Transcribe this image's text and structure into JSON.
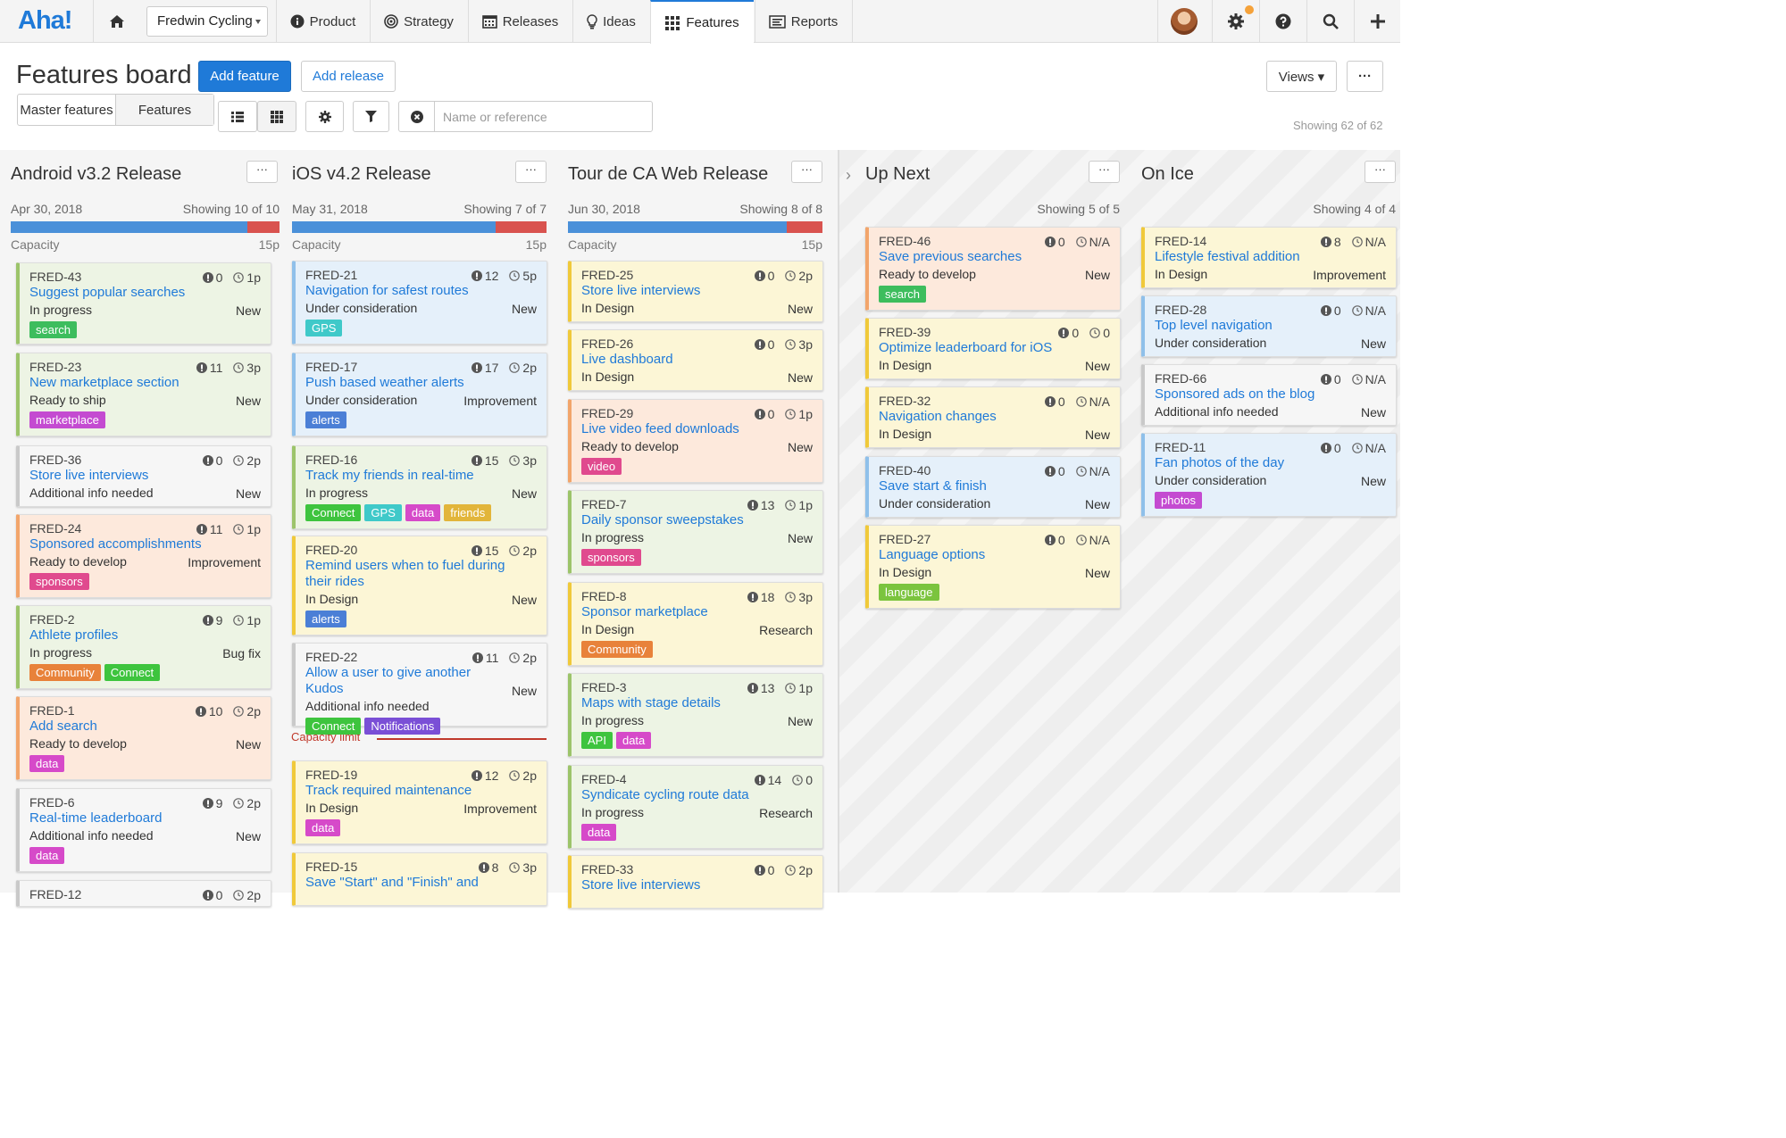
{
  "app": {
    "logo": "Aha!",
    "workspace": "Fredwin Cycling"
  },
  "nav": {
    "product": "Product",
    "strategy": "Strategy",
    "releases": "Releases",
    "ideas": "Ideas",
    "features": "Features",
    "reports": "Reports"
  },
  "page": {
    "title": "Features board",
    "add_feature": "Add feature",
    "add_release": "Add release",
    "views": "Views ▾",
    "more": "···",
    "seg_master": "Master features",
    "seg_features": "Features",
    "search_placeholder": "Name or reference",
    "showing": "Showing 62 of 62",
    "capacity_limit": "Capacity limit"
  },
  "colors": {
    "accent": "#1f7ad8",
    "capacity_fill": "#4a90d9",
    "capacity_over": "#d9534f",
    "limit": "#c0392b"
  },
  "columns": [
    {
      "title": "Android v3.2 Release",
      "date": "Apr 30, 2018",
      "showing": "Showing 10 of 10",
      "capacity_label": "Capacity",
      "capacity_points": "15p",
      "capacity_fill_pct": 88
    },
    {
      "title": "iOS v4.2 Release",
      "date": "May 31, 2018",
      "showing": "Showing 7 of 7",
      "capacity_label": "Capacity",
      "capacity_points": "15p",
      "capacity_fill_pct": 80
    },
    {
      "title": "Tour de CA Web Release",
      "date": "Jun 30, 2018",
      "showing": "Showing 8 of 8",
      "capacity_label": "Capacity",
      "capacity_points": "15p",
      "capacity_fill_pct": 86
    },
    {
      "title": "Up Next",
      "showing": "Showing 5 of 5"
    },
    {
      "title": "On Ice",
      "showing": "Showing 4 of 4"
    }
  ],
  "cards": [
    {
      "ref": "FRED-43",
      "name": "Suggest popular searches",
      "status": "In progress",
      "type": "New",
      "score": "0",
      "est": "1p",
      "color": "green",
      "tags": [
        {
          "t": "search",
          "c": "#3dbd5d"
        }
      ]
    },
    {
      "ref": "FRED-23",
      "name": "New marketplace section",
      "status": "Ready to ship",
      "type": "New",
      "score": "11",
      "est": "3p",
      "color": "green",
      "tags": [
        {
          "t": "marketplace",
          "c": "#c44bd1"
        }
      ]
    },
    {
      "ref": "FRED-36",
      "name": "Store live interviews",
      "status": "Additional info needed",
      "type": "New",
      "score": "0",
      "est": "2p",
      "color": "gray",
      "tags": []
    },
    {
      "ref": "FRED-24",
      "name": "Sponsored accomplishments",
      "status": "Ready to develop",
      "type": "Improvement",
      "score": "11",
      "est": "1p",
      "color": "orange",
      "tags": [
        {
          "t": "sponsors",
          "c": "#e04a8e"
        }
      ]
    },
    {
      "ref": "FRED-2",
      "name": "Athlete profiles",
      "status": "In progress",
      "type": "Bug fix",
      "score": "9",
      "est": "1p",
      "color": "green",
      "tags": [
        {
          "t": "Community",
          "c": "#e8823a"
        },
        {
          "t": "Connect",
          "c": "#3ec43e"
        }
      ]
    },
    {
      "ref": "FRED-1",
      "name": "Add search",
      "status": "Ready to develop",
      "type": "New",
      "score": "10",
      "est": "2p",
      "color": "orange",
      "tags": [
        {
          "t": "data",
          "c": "#d64ac9"
        }
      ]
    },
    {
      "ref": "FRED-6",
      "name": "Real-time leaderboard",
      "status": "Additional info needed",
      "type": "New",
      "score": "9",
      "est": "2p",
      "color": "gray",
      "tags": [
        {
          "t": "data",
          "c": "#d64ac9"
        }
      ]
    },
    {
      "ref": "FRED-12",
      "name": "",
      "status": "",
      "type": "",
      "score": "0",
      "est": "2p",
      "color": "gray",
      "tags": []
    },
    {
      "ref": "FRED-21",
      "name": "Navigation for safest routes",
      "status": "Under consideration",
      "type": "New",
      "score": "12",
      "est": "5p",
      "color": "blue",
      "tags": [
        {
          "t": "GPS",
          "c": "#3fc9c9"
        }
      ]
    },
    {
      "ref": "FRED-17",
      "name": "Push based weather alerts",
      "status": "Under consideration",
      "type": "Improvement",
      "score": "17",
      "est": "2p",
      "color": "blue",
      "tags": [
        {
          "t": "alerts",
          "c": "#4b7fd6"
        }
      ]
    },
    {
      "ref": "FRED-16",
      "name": "Track my friends in real-time",
      "status": "In progress",
      "type": "New",
      "score": "15",
      "est": "3p",
      "color": "green",
      "tags": [
        {
          "t": "Connect",
          "c": "#3ec43e"
        },
        {
          "t": "GPS",
          "c": "#3fc9c9"
        },
        {
          "t": "data",
          "c": "#d64ac9"
        },
        {
          "t": "friends",
          "c": "#e2b53a"
        }
      ]
    },
    {
      "ref": "FRED-20",
      "name": "Remind users when to fuel during their rides",
      "status": "In Design",
      "type": "New",
      "score": "15",
      "est": "2p",
      "color": "yellow",
      "tags": [
        {
          "t": "alerts",
          "c": "#4b7fd6"
        }
      ]
    },
    {
      "ref": "FRED-22",
      "name": "Allow a user to give another Kudos",
      "status": "Additional info needed",
      "type": "New",
      "score": "11",
      "est": "2p",
      "color": "gray",
      "tags": [
        {
          "t": "Connect",
          "c": "#3ec43e"
        },
        {
          "t": "Notifications",
          "c": "#7a4fd6"
        }
      ]
    },
    {
      "ref": "FRED-19",
      "name": "Track required maintenance",
      "status": "In Design",
      "type": "Improvement",
      "score": "12",
      "est": "2p",
      "color": "yellow",
      "tags": [
        {
          "t": "data",
          "c": "#d64ac9"
        }
      ]
    },
    {
      "ref": "FRED-15",
      "name": "Save \"Start\" and \"Finish\" and",
      "status": "",
      "type": "",
      "score": "8",
      "est": "3p",
      "color": "yellow",
      "tags": []
    },
    {
      "ref": "FRED-25",
      "name": "Store live interviews",
      "status": "In Design",
      "type": "New",
      "score": "0",
      "est": "2p",
      "color": "yellow",
      "tags": []
    },
    {
      "ref": "FRED-26",
      "name": "Live dashboard",
      "status": "In Design",
      "type": "New",
      "score": "0",
      "est": "3p",
      "color": "yellow",
      "tags": []
    },
    {
      "ref": "FRED-29",
      "name": "Live video feed downloads",
      "status": "Ready to develop",
      "type": "New",
      "score": "0",
      "est": "1p",
      "color": "orange",
      "tags": [
        {
          "t": "video",
          "c": "#e04a8e"
        }
      ]
    },
    {
      "ref": "FRED-7",
      "name": "Daily sponsor sweepstakes",
      "status": "In progress",
      "type": "New",
      "score": "13",
      "est": "1p",
      "color": "green",
      "tags": [
        {
          "t": "sponsors",
          "c": "#e04a8e"
        }
      ]
    },
    {
      "ref": "FRED-8",
      "name": "Sponsor marketplace",
      "status": "In Design",
      "type": "Research",
      "score": "18",
      "est": "3p",
      "color": "yellow",
      "tags": [
        {
          "t": "Community",
          "c": "#e8823a"
        }
      ]
    },
    {
      "ref": "FRED-3",
      "name": "Maps with stage details",
      "status": "In progress",
      "type": "New",
      "score": "13",
      "est": "1p",
      "color": "green",
      "tags": [
        {
          "t": "API",
          "c": "#3ec43e"
        },
        {
          "t": "data",
          "c": "#d64ac9"
        }
      ]
    },
    {
      "ref": "FRED-4",
      "name": "Syndicate cycling route data",
      "status": "In progress",
      "type": "Research",
      "score": "14",
      "est": "0",
      "color": "green",
      "tags": [
        {
          "t": "data",
          "c": "#d64ac9"
        }
      ]
    },
    {
      "ref": "FRED-33",
      "name": "Store live interviews",
      "status": "",
      "type": "",
      "score": "0",
      "est": "2p",
      "color": "yellow",
      "tags": []
    },
    {
      "ref": "FRED-46",
      "name": "Save previous searches",
      "status": "Ready to develop",
      "type": "New",
      "score": "0",
      "est": "N/A",
      "color": "orange",
      "tags": [
        {
          "t": "search",
          "c": "#3dbd5d"
        }
      ]
    },
    {
      "ref": "FRED-39",
      "name": "Optimize leaderboard for iOS",
      "status": "In Design",
      "type": "New",
      "score": "0",
      "est": "0",
      "color": "yellow",
      "tags": []
    },
    {
      "ref": "FRED-32",
      "name": "Navigation changes",
      "status": "In Design",
      "type": "New",
      "score": "0",
      "est": "N/A",
      "color": "yellow",
      "tags": []
    },
    {
      "ref": "FRED-40",
      "name": "Save start & finish",
      "status": "Under consideration",
      "type": "New",
      "score": "0",
      "est": "N/A",
      "color": "blue",
      "tags": []
    },
    {
      "ref": "FRED-27",
      "name": "Language options",
      "status": "In Design",
      "type": "New",
      "score": "0",
      "est": "N/A",
      "color": "yellow",
      "tags": [
        {
          "t": "language",
          "c": "#7bc43e"
        }
      ]
    },
    {
      "ref": "FRED-14",
      "name": "Lifestyle festival addition",
      "status": "In Design",
      "type": "Improvement",
      "score": "8",
      "est": "N/A",
      "color": "yellow",
      "tags": []
    },
    {
      "ref": "FRED-28",
      "name": "Top level navigation",
      "status": "Under consideration",
      "type": "New",
      "score": "0",
      "est": "N/A",
      "color": "blue",
      "tags": []
    },
    {
      "ref": "FRED-66",
      "name": "Sponsored ads on the blog",
      "status": "Additional info needed",
      "type": "New",
      "score": "0",
      "est": "N/A",
      "color": "gray",
      "tags": []
    },
    {
      "ref": "FRED-11",
      "name": "Fan photos of the day",
      "status": "Under consideration",
      "type": "New",
      "score": "0",
      "est": "N/A",
      "color": "blue",
      "tags": [
        {
          "t": "photos",
          "c": "#c44bd1"
        }
      ]
    }
  ]
}
